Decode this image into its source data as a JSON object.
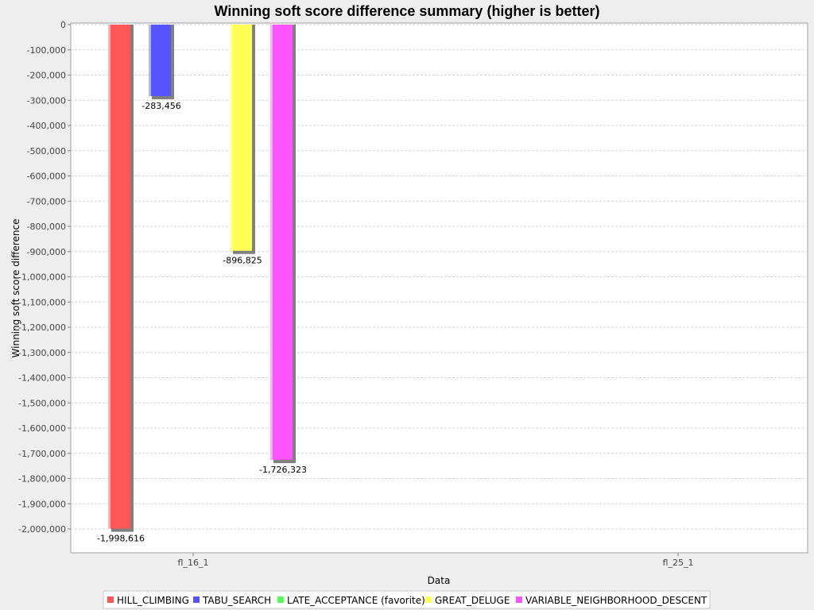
{
  "chart_data": {
    "type": "bar",
    "title": "Winning soft score difference summary (higher is better)",
    "xlabel": "Data",
    "ylabel": "Winning soft score difference",
    "categories": [
      "fl_16_1",
      "fl_25_1"
    ],
    "ylim": [
      -2100000,
      0
    ],
    "ytick_step": 100000,
    "ytick_labels": [
      "0",
      "-100,000",
      "-200,000",
      "-300,000",
      "-400,000",
      "-500,000",
      "-600,000",
      "-700,000",
      "-800,000",
      "-900,000",
      "-1,000,000",
      "-1,100,000",
      "-1,200,000",
      "-1,300,000",
      "-1,400,000",
      "-1,500,000",
      "-1,600,000",
      "-1,700,000",
      "-1,800,000",
      "-1,900,000",
      "-2,000,000"
    ],
    "grid": true,
    "legend_position": "bottom",
    "series": [
      {
        "name": "HILL_CLIMBING",
        "color": "#ff5555",
        "values": [
          -1998616,
          null
        ],
        "labels": [
          "-1,998,616",
          ""
        ]
      },
      {
        "name": "TABU_SEARCH",
        "color": "#5555ff",
        "values": [
          -283456,
          null
        ],
        "labels": [
          "-283,456",
          ""
        ]
      },
      {
        "name": "LATE_ACCEPTANCE (favorite)",
        "color": "#55ff55",
        "values": [
          0,
          null
        ],
        "labels": [
          "",
          ""
        ]
      },
      {
        "name": "GREAT_DELUGE",
        "color": "#ffff55",
        "values": [
          -896825,
          null
        ],
        "labels": [
          "-896,825",
          ""
        ]
      },
      {
        "name": "VARIABLE_NEIGHBORHOOD_DESCENT",
        "color": "#ff55ff",
        "values": [
          -1726323,
          null
        ],
        "labels": [
          "-1,726,323",
          ""
        ]
      }
    ]
  }
}
